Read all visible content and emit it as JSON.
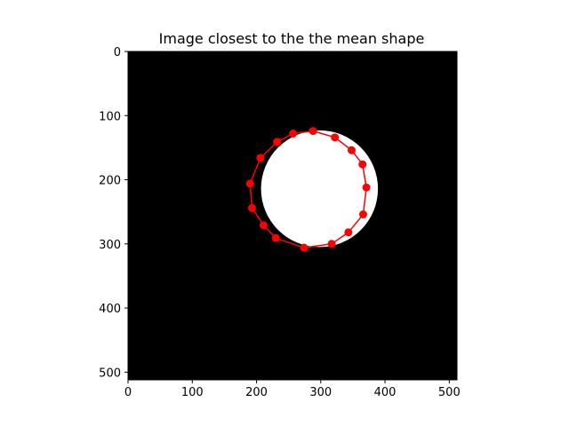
{
  "chart_data": {
    "type": "scatter",
    "title": "Image closest to the the mean shape",
    "xlabel": "",
    "ylabel": "",
    "xlim": [
      0,
      512
    ],
    "ylim": [
      512,
      0
    ],
    "y_inverted": true,
    "x_ticks": [
      0,
      100,
      200,
      300,
      400,
      500
    ],
    "y_ticks": [
      0,
      100,
      200,
      300,
      400,
      500
    ],
    "x_tick_labels": [
      "0",
      "100",
      "200",
      "300",
      "400",
      "500"
    ],
    "y_tick_labels": [
      "0",
      "100",
      "200",
      "300",
      "400",
      "500"
    ],
    "grid": false,
    "background": "image",
    "image": {
      "description_color_background": "#000000",
      "blob_color": "#ffffff",
      "blob_center": [
        298,
        214
      ],
      "blob_radius": 91
    },
    "series": [
      {
        "marker_color": "#ff0000",
        "line_color": "#ff0000",
        "closed": true,
        "points": [
          [
            288,
            124
          ],
          [
            322,
            134
          ],
          [
            348,
            154
          ],
          [
            365,
            176
          ],
          [
            371,
            212
          ],
          [
            366,
            254
          ],
          [
            343,
            282
          ],
          [
            317,
            300
          ],
          [
            274,
            306
          ],
          [
            230,
            291
          ],
          [
            211,
            271
          ],
          [
            193,
            244
          ],
          [
            190,
            206
          ],
          [
            206,
            166
          ],
          [
            232,
            141
          ],
          [
            257,
            128
          ]
        ]
      }
    ]
  }
}
